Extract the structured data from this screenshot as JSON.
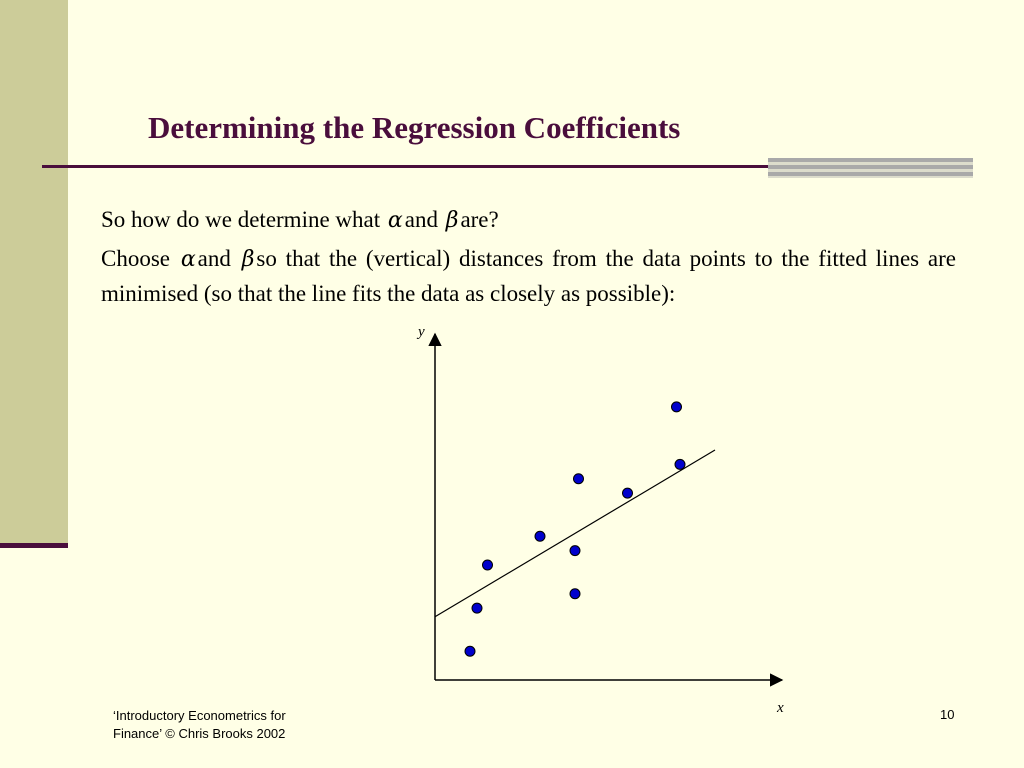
{
  "slide": {
    "title": "Determining the Regression Coefficients",
    "line1": {
      "pre": "So how do we determine what",
      "alpha": "α",
      "mid": "and",
      "beta": "β",
      "post": "are?"
    },
    "line2": {
      "pre": "Choose",
      "alpha": "α",
      "mid": "and",
      "beta": "β",
      "post": "so that the (vertical) distances from the data points to the fitted lines are minimised (so that the line fits the data as closely as possible):"
    },
    "footer_line1": "‘Introductory Econometrics for",
    "footer_line2": "Finance’ © Chris Brooks 2002",
    "page_number": "10",
    "colors": {
      "title": "#4a0e3c",
      "point": "#0000cc",
      "band": "#cccc99"
    }
  },
  "chart_data": {
    "type": "scatter",
    "xlabel": "x",
    "ylabel": "y",
    "points": [
      {
        "x": 1.0,
        "y": 1.0
      },
      {
        "x": 1.2,
        "y": 2.5
      },
      {
        "x": 1.5,
        "y": 4.0
      },
      {
        "x": 3.0,
        "y": 5.0
      },
      {
        "x": 4.0,
        "y": 4.5
      },
      {
        "x": 4.1,
        "y": 7.0
      },
      {
        "x": 5.5,
        "y": 6.5
      },
      {
        "x": 6.9,
        "y": 9.5
      },
      {
        "x": 7.0,
        "y": 7.5
      },
      {
        "x": 4.0,
        "y": 3.0
      }
    ],
    "fit_line": {
      "x1": 0.0,
      "y1": 2.2,
      "x2": 8.0,
      "y2": 8.0
    },
    "xlim": [
      0,
      10
    ],
    "ylim": [
      0,
      12
    ],
    "grid": false
  }
}
